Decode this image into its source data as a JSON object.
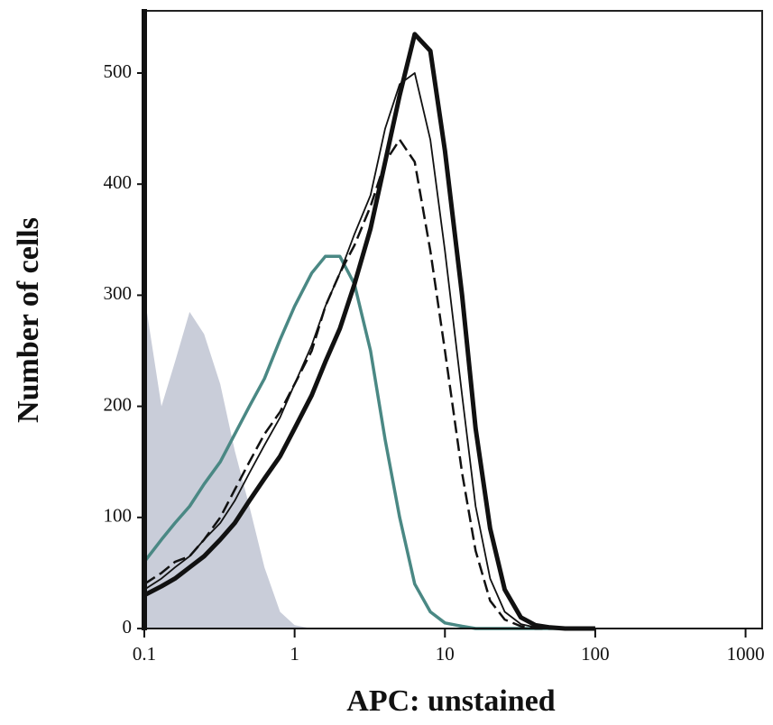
{
  "chart_data": {
    "type": "line",
    "xscale": "log",
    "x_label": "APC: unstained",
    "y_label": "Number of cells",
    "x": [
      0.1,
      0.13,
      0.16,
      0.2,
      0.25,
      0.32,
      0.4,
      0.5,
      0.63,
      0.8,
      1,
      1.3,
      1.6,
      2,
      2.5,
      3.2,
      4,
      5,
      6.3,
      8,
      10,
      13,
      16,
      20,
      25,
      32,
      40,
      50,
      63,
      80,
      100
    ],
    "series": [
      {
        "color": "#c9cdd9",
        "style": "area",
        "values": [
          300,
          200,
          240,
          285,
          265,
          220,
          160,
          110,
          55,
          15,
          3,
          0,
          0,
          0,
          0,
          0,
          0,
          0,
          0,
          0,
          0,
          0,
          0,
          0,
          0,
          0,
          0,
          0,
          0,
          0,
          0
        ]
      },
      {
        "color": "#4a8884",
        "style": "medium",
        "values": [
          60,
          80,
          95,
          110,
          130,
          150,
          175,
          200,
          225,
          260,
          290,
          320,
          335,
          335,
          310,
          250,
          170,
          100,
          40,
          15,
          5,
          2,
          0,
          0,
          0,
          0,
          0,
          0,
          0,
          0,
          0
        ]
      },
      {
        "color": "#111111",
        "style": "dashed",
        "values": [
          40,
          50,
          60,
          65,
          80,
          100,
          125,
          150,
          175,
          195,
          220,
          250,
          290,
          320,
          345,
          380,
          420,
          440,
          420,
          340,
          250,
          140,
          70,
          25,
          8,
          2,
          0,
          0,
          0,
          0,
          0
        ]
      },
      {
        "color": "#111111",
        "style": "thin",
        "values": [
          35,
          45,
          55,
          65,
          80,
          95,
          115,
          140,
          165,
          190,
          220,
          255,
          290,
          320,
          355,
          390,
          450,
          490,
          500,
          440,
          340,
          210,
          110,
          45,
          15,
          4,
          1,
          0,
          0,
          0,
          0
        ]
      },
      {
        "color": "#111111",
        "style": "thick",
        "values": [
          30,
          38,
          45,
          55,
          65,
          80,
          95,
          115,
          135,
          155,
          180,
          210,
          240,
          270,
          310,
          360,
          420,
          480,
          535,
          520,
          430,
          300,
          180,
          90,
          35,
          10,
          3,
          1,
          0,
          0,
          0
        ]
      }
    ],
    "xlim": [
      0.1,
      1290
    ],
    "ylim": [
      0,
      556
    ],
    "xticks": [
      0.1,
      1,
      10,
      100,
      1000
    ],
    "yticks": [
      0,
      100,
      200,
      300,
      400,
      500
    ]
  }
}
